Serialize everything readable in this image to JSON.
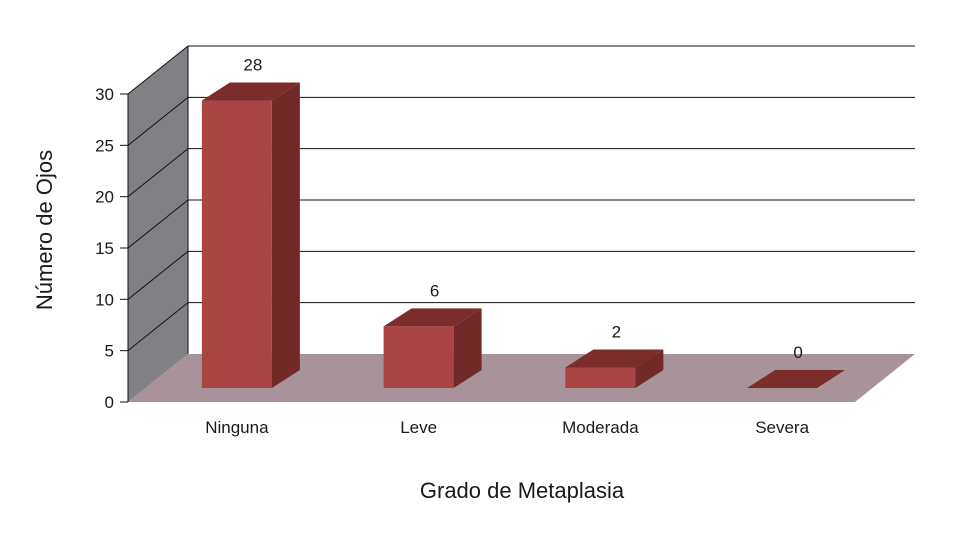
{
  "chart_data": {
    "type": "bar",
    "title": "",
    "xlabel": "Grado de Metaplasia",
    "ylabel": "Número de Ojos",
    "categories": [
      "Ninguna",
      "Leve",
      "Moderada",
      "Severa"
    ],
    "values": [
      28,
      6,
      2,
      0
    ],
    "ylim": [
      0,
      30
    ],
    "yticks": [
      0,
      5,
      10,
      15,
      20,
      25,
      30
    ],
    "grid": true,
    "style": "3d",
    "colors": {
      "bar_front": "#a84442",
      "bar_side": "#722a28",
      "bar_top": "#7a2d2b",
      "wall": "#808085",
      "floor": "#a8939a"
    }
  }
}
